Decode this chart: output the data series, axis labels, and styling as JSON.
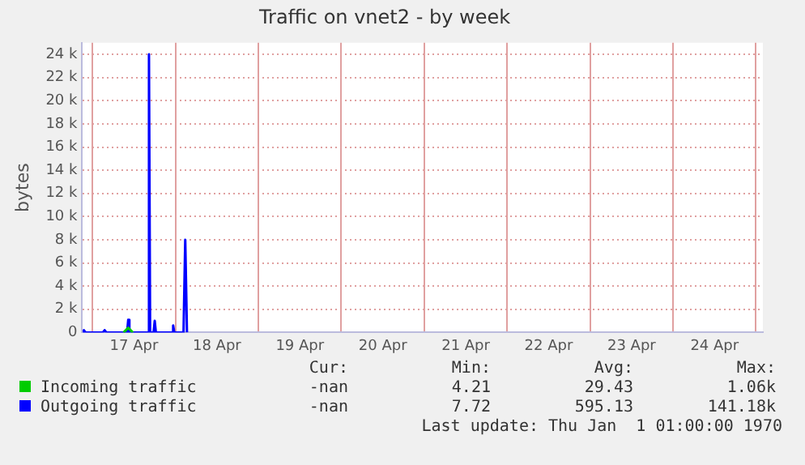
{
  "chart_data": {
    "type": "line",
    "title": "Traffic on vnet2 - by week",
    "ylabel": "bytes",
    "xlim": [
      "--04-16T21:00",
      "--04-25T02:00"
    ],
    "xticks": [
      {
        "value": "--04-17",
        "label": null
      },
      {
        "value": "--04-17T12:00",
        "label": "17 Apr"
      },
      {
        "value": "--04-18",
        "label": null
      },
      {
        "value": "--04-18T12:00",
        "label": "18 Apr"
      },
      {
        "value": "--04-19",
        "label": null
      },
      {
        "value": "--04-19T12:00",
        "label": "19 Apr"
      },
      {
        "value": "--04-20",
        "label": null
      },
      {
        "value": "--04-20T12:00",
        "label": "20 Apr"
      },
      {
        "value": "--04-21",
        "label": null
      },
      {
        "value": "--04-21T12:00",
        "label": "21 Apr"
      },
      {
        "value": "--04-22",
        "label": null
      },
      {
        "value": "--04-22T12:00",
        "label": "22 Apr"
      },
      {
        "value": "--04-23",
        "label": null
      },
      {
        "value": "--04-23T12:00",
        "label": "23 Apr"
      },
      {
        "value": "--04-24",
        "label": null
      },
      {
        "value": "--04-24T12:00",
        "label": "24 Apr"
      },
      {
        "value": "--04-25",
        "label": null
      }
    ],
    "ylim": [
      0,
      25000
    ],
    "yticks": [
      0,
      {
        "value": 2000,
        "label": "2 k"
      },
      {
        "value": 4000,
        "label": "4 k"
      },
      {
        "value": 6000,
        "label": "6 k"
      },
      {
        "value": 8000,
        "label": "8 k"
      },
      {
        "value": 10000,
        "label": "10 k"
      },
      {
        "value": 12000,
        "label": "12 k"
      },
      {
        "value": 14000,
        "label": "14 k"
      },
      {
        "value": 16000,
        "label": "16 k"
      },
      {
        "value": 18000,
        "label": "18 k"
      },
      {
        "value": 20000,
        "label": "20 k"
      },
      {
        "value": 22000,
        "label": "22 k"
      },
      {
        "value": 24000,
        "label": "24 k"
      }
    ],
    "grid": true,
    "legend": "bottom",
    "marker": "none",
    "line_style": "solid",
    "series": [
      {
        "name": "Incoming traffic",
        "color": "#00cc00",
        "x": [
          "--04-17T09:00",
          "--04-17T10:20",
          "--04-17T11:40"
        ],
        "values": [
          0,
          400,
          0
        ]
      },
      {
        "name": "Outgoing traffic",
        "color": "#0000ff",
        "x": [
          "--04-16T21:15",
          "--04-16T21:30",
          "--04-16T22:00",
          "--04-17T03:00",
          "--04-17T03:30",
          "--04-17T04:00",
          "--04-17T10:00",
          "--04-17T10:20",
          "--04-17T10:40",
          "--04-17T16:00",
          "--04-17T16:20",
          "--04-17T16:40",
          "--04-17T17:40",
          "--04-17T18:00",
          "--04-17T18:20",
          "--04-17T23:00",
          "--04-17T23:20",
          "--04-17T23:40",
          "--04-18T02:20",
          "--04-18T02:50",
          "--04-18T03:20"
        ],
        "values": [
          0,
          200,
          0,
          0,
          200,
          0,
          0,
          1100,
          0,
          0,
          24000,
          0,
          0,
          1000,
          0,
          0,
          600,
          0,
          0,
          8000,
          0
        ]
      }
    ],
    "annotations": [
      "Cur:",
      "Min:",
      "Avg:",
      "Max:",
      "-nan",
      "4.21",
      "29.43",
      "1.06k",
      "-nan",
      "7.72",
      "595.13",
      "141.18k",
      "Last update: Thu Jan  1 01:00:00 1970"
    ]
  }
}
